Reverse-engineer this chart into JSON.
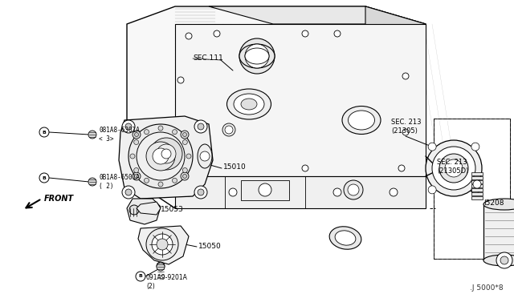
{
  "bg_color": "#ffffff",
  "fig_width": 6.4,
  "fig_height": 3.72,
  "labels": {
    "sec111": "SEC.111",
    "sec213_a": "SEC. 213\n(21305)",
    "sec213_b": "SEC. 213\n(21305D)",
    "bolt1": "081A8-6301A\n< 3>",
    "bolt2": "0B1A8-6501A\n( 2)",
    "bolt3": "091A9-9201A\n(2)",
    "part15010": "15010",
    "part15053": "15053",
    "part15050": "15050",
    "part15208": "l5208",
    "front": "FRONT",
    "fig_num": ".J 5000*8"
  }
}
